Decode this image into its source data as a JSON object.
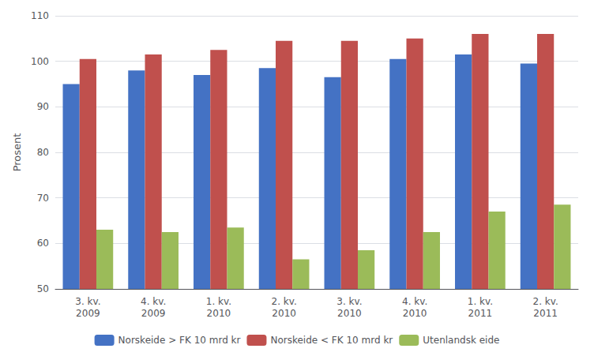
{
  "chart_data": {
    "type": "bar",
    "categories": [
      "3. kv.\n2009",
      "4. kv.\n2009",
      "1. kv.\n2010",
      "2. kv.\n2010",
      "3. kv.\n2010",
      "4. kv.\n2010",
      "1. kv.\n2011",
      "2. kv.\n2011"
    ],
    "series": [
      {
        "name": "Norskeide > FK 10 mrd kr",
        "color": "#4472C4",
        "values": [
          95.0,
          98.0,
          97.0,
          98.5,
          96.5,
          100.5,
          101.5,
          99.5
        ]
      },
      {
        "name": "Norskeide < FK 10 mrd kr",
        "color": "#C0504D",
        "values": [
          100.5,
          101.5,
          102.5,
          104.5,
          104.5,
          105.0,
          106.0,
          106.0
        ]
      },
      {
        "name": "Utenlandsk eide",
        "color": "#9BBB59",
        "values": [
          63.0,
          62.5,
          63.5,
          56.5,
          58.5,
          62.5,
          67.0,
          68.5
        ]
      }
    ],
    "ylabel": "Prosent",
    "ylim": [
      50,
      110
    ],
    "yticks": [
      50,
      60,
      70,
      80,
      90,
      100,
      110
    ],
    "grid": true,
    "legend": "bottom"
  }
}
